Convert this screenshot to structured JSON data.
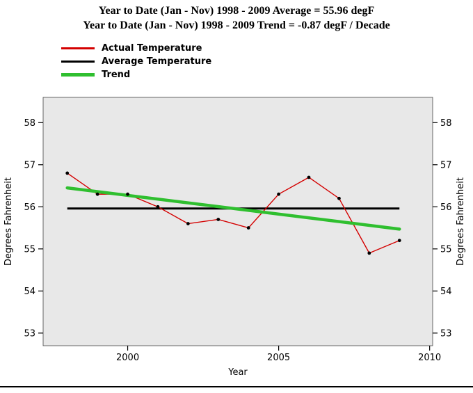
{
  "titles": {
    "line1": "Year to Date (Jan - Nov) 1998 - 2009 Average = 55.96 degF",
    "line2": "Year to Date (Jan - Nov) 1998 - 2009 Trend = -0.87 degF / Decade"
  },
  "legend": {
    "items": [
      {
        "label": "Actual Temperature",
        "color": "#d40000"
      },
      {
        "label": "Average Temperature",
        "color": "#000000"
      },
      {
        "label": "Trend",
        "color": "#2fbf2f"
      }
    ]
  },
  "chart_data": {
    "type": "line",
    "title": "Year to Date (Jan - Nov) 1998 - 2009 Average = 55.96 degF / Trend = -0.87 degF / Decade",
    "xlabel": "Year",
    "ylabel": "Degrees Fahrenheit",
    "x": [
      1998,
      1999,
      2000,
      2001,
      2002,
      2003,
      2004,
      2005,
      2006,
      2007,
      2008,
      2009
    ],
    "series": [
      {
        "name": "Actual Temperature",
        "type": "line+markers",
        "color": "#d40000",
        "marker_color": "#000000",
        "values": [
          56.8,
          56.3,
          56.3,
          56.0,
          55.6,
          55.7,
          55.5,
          56.3,
          56.7,
          56.2,
          54.9,
          55.2
        ]
      },
      {
        "name": "Average Temperature",
        "type": "constant",
        "color": "#000000",
        "constant": 55.96
      },
      {
        "name": "Trend",
        "type": "trend",
        "color": "#2fbf2f",
        "start_value": 56.45,
        "end_value": 55.47,
        "slope_degF_per_decade": -0.87
      }
    ],
    "stats": {
      "average_degF": 55.96,
      "trend_degF_per_decade": -0.87
    },
    "xlim": [
      1997.2,
      2010.1
    ],
    "ylim": [
      52.7,
      58.6
    ],
    "xticks": [
      2000,
      2005,
      2010
    ],
    "yticks": [
      53,
      54,
      55,
      56,
      57,
      58
    ],
    "grid": false,
    "legend_position": "top-left",
    "plot_background": "#e8e8e8"
  }
}
